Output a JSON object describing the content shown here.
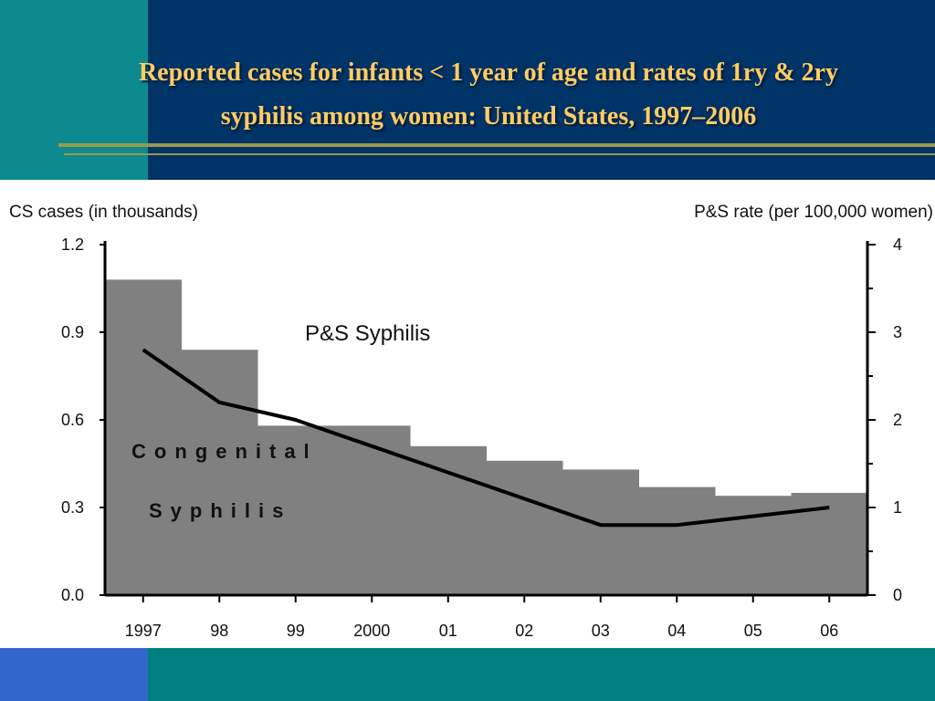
{
  "slide": {
    "title_line1": "Reported cases for infants < 1 year of age and rates of 1ry & 2ry",
    "title_line2": "syphilis among women: United States, 1997–2006",
    "colors": {
      "title": "#ffcc66",
      "background": "#003366",
      "accent_teal": "#0d8a8e",
      "accent_blue": "#3366cc",
      "rule": "#99994d"
    }
  },
  "chart_data": {
    "type": "bar",
    "title": "",
    "categories": [
      "1997",
      "98",
      "99",
      "2000",
      "01",
      "02",
      "03",
      "04",
      "05",
      "06"
    ],
    "ylabel_left": "CS cases (in thousands)",
    "ylabel_right": "P&S rate (per 100,000 women)",
    "ylim_left": [
      0,
      1.2
    ],
    "ylim_right": [
      0,
      4
    ],
    "yticks_left": [
      "1.2",
      "0.9",
      "0.6",
      "0.3",
      "0.0"
    ],
    "yticks_right": [
      "4",
      "3",
      "2",
      "1",
      "0"
    ],
    "series": [
      {
        "name": "Congenital Syphilis",
        "kind": "bar",
        "axis": "left",
        "color": "#808080",
        "values": [
          1.08,
          0.84,
          0.58,
          0.58,
          0.51,
          0.46,
          0.43,
          0.37,
          0.34,
          0.35
        ]
      },
      {
        "name": "P&S Syphilis",
        "kind": "line",
        "axis": "right",
        "color": "#000000",
        "values": [
          2.8,
          2.2,
          2.0,
          1.7,
          1.4,
          1.1,
          0.8,
          0.8,
          0.9,
          1.0
        ]
      }
    ],
    "annotations": {
      "line_label": "P&S Syphilis",
      "bar_label_line1": "Congenital",
      "bar_label_line2": "Syphilis"
    },
    "grid": false
  }
}
